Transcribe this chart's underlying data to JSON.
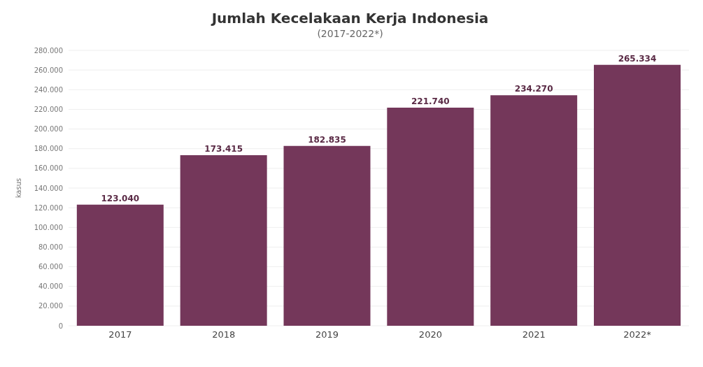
{
  "chart_data": {
    "type": "bar",
    "title": "Jumlah Kecelakaan Kerja Indonesia",
    "subtitle": "(2017-2022*)",
    "ylabel": "kasus",
    "categories": [
      "2017",
      "2018",
      "2019",
      "2020",
      "2021",
      "2022*"
    ],
    "values": [
      123040,
      173415,
      182835,
      221740,
      234270,
      265334
    ],
    "value_labels": [
      "123.040",
      "173.415",
      "182.835",
      "221.740",
      "234.270",
      "265.334"
    ],
    "color": "#74375a",
    "ylim": [
      0,
      280000
    ],
    "yticks": [
      {
        "value": 0,
        "label": "0"
      },
      {
        "value": 20000,
        "label": "20.000"
      },
      {
        "value": 40000,
        "label": "40.000"
      },
      {
        "value": 60000,
        "label": "60.000"
      },
      {
        "value": 80000,
        "label": "80.000"
      },
      {
        "value": 100000,
        "label": "100.000"
      },
      {
        "value": 120000,
        "label": "120.000"
      },
      {
        "value": 140000,
        "label": "140.000"
      },
      {
        "value": 160000,
        "label": "160.000"
      },
      {
        "value": 180000,
        "label": "180.000"
      },
      {
        "value": 200000,
        "label": "200.000"
      },
      {
        "value": 220000,
        "label": "220.000"
      },
      {
        "value": 240000,
        "label": "240.000"
      },
      {
        "value": 260000,
        "label": "260.000"
      },
      {
        "value": 280000,
        "label": "280.000"
      }
    ],
    "grid": "y"
  }
}
